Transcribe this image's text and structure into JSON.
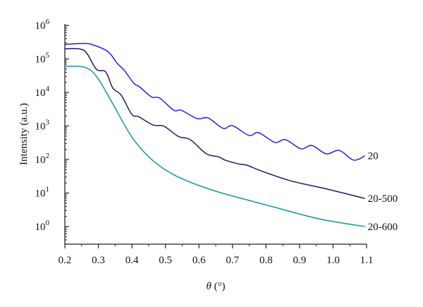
{
  "chart_data": {
    "type": "line",
    "title": "",
    "xlabel": "θ (°)",
    "xlabel_symbol": "θ",
    "xlabel_unit": " (°)",
    "ylabel": "Intensity (a.u.)",
    "yscale": "log",
    "xlim": [
      0.2,
      1.1
    ],
    "ylim": [
      1.0,
      1000000.0
    ],
    "grid": false,
    "legend": "inline labels at right end of each line",
    "x_ticks": [
      "0.2",
      "0.3",
      "0.4",
      "0.5",
      "0.6",
      "0.7",
      "0.8",
      "0.9",
      "1.0",
      "1.1"
    ],
    "y_ticks": [
      {
        "base": "10",
        "exp": "0"
      },
      {
        "base": "10",
        "exp": "1"
      },
      {
        "base": "10",
        "exp": "2"
      },
      {
        "base": "10",
        "exp": "3"
      },
      {
        "base": "10",
        "exp": "4"
      },
      {
        "base": "10",
        "exp": "5"
      },
      {
        "base": "10",
        "exp": "6"
      }
    ],
    "series": [
      {
        "name": "20",
        "color": "#2424d8",
        "x": [
          0.2,
          0.252,
          0.28,
          0.328,
          0.357,
          0.378,
          0.406,
          0.423,
          0.458,
          0.483,
          0.525,
          0.547,
          0.595,
          0.627,
          0.672,
          0.7,
          0.749,
          0.778,
          0.826,
          0.858,
          0.904,
          0.937,
          0.979,
          1.019,
          1.061,
          1.095
        ],
        "y": [
          270000,
          290000,
          270000,
          166000,
          72000,
          45000,
          18600,
          14700,
          7400,
          6800,
          2950,
          2950,
          1660,
          1740,
          850,
          1020,
          525,
          630,
          324,
          390,
          209,
          263,
          148,
          186,
          96,
          129
        ]
      },
      {
        "name": "20-500",
        "color": "#1c1c6a",
        "x": [
          0.2,
          0.242,
          0.265,
          0.294,
          0.322,
          0.343,
          0.368,
          0.4,
          0.42,
          0.463,
          0.496,
          0.538,
          0.574,
          0.622,
          0.658,
          0.679,
          0.717,
          0.742,
          0.79,
          0.874,
          0.973,
          1.095
        ],
        "y": [
          200000,
          200000,
          150000,
          49000,
          41000,
          13500,
          8300,
          2200,
          1900,
          1070,
          980,
          490,
          390,
          148,
          121,
          95,
          74,
          68,
          44,
          23,
          13.8,
          6.9
        ]
      },
      {
        "name": "20-600",
        "color": "#1a9595",
        "x": [
          0.2,
          0.242,
          0.273,
          0.3,
          0.343,
          0.378,
          0.412,
          0.463,
          0.525,
          0.595,
          0.665,
          0.679,
          0.82,
          0.958,
          1.095
        ],
        "y": [
          60000,
          60000,
          49000,
          25000,
          4600,
          1070,
          320,
          92,
          35,
          17.5,
          10.2,
          9.3,
          3.9,
          1.7,
          1.0
        ]
      }
    ]
  }
}
